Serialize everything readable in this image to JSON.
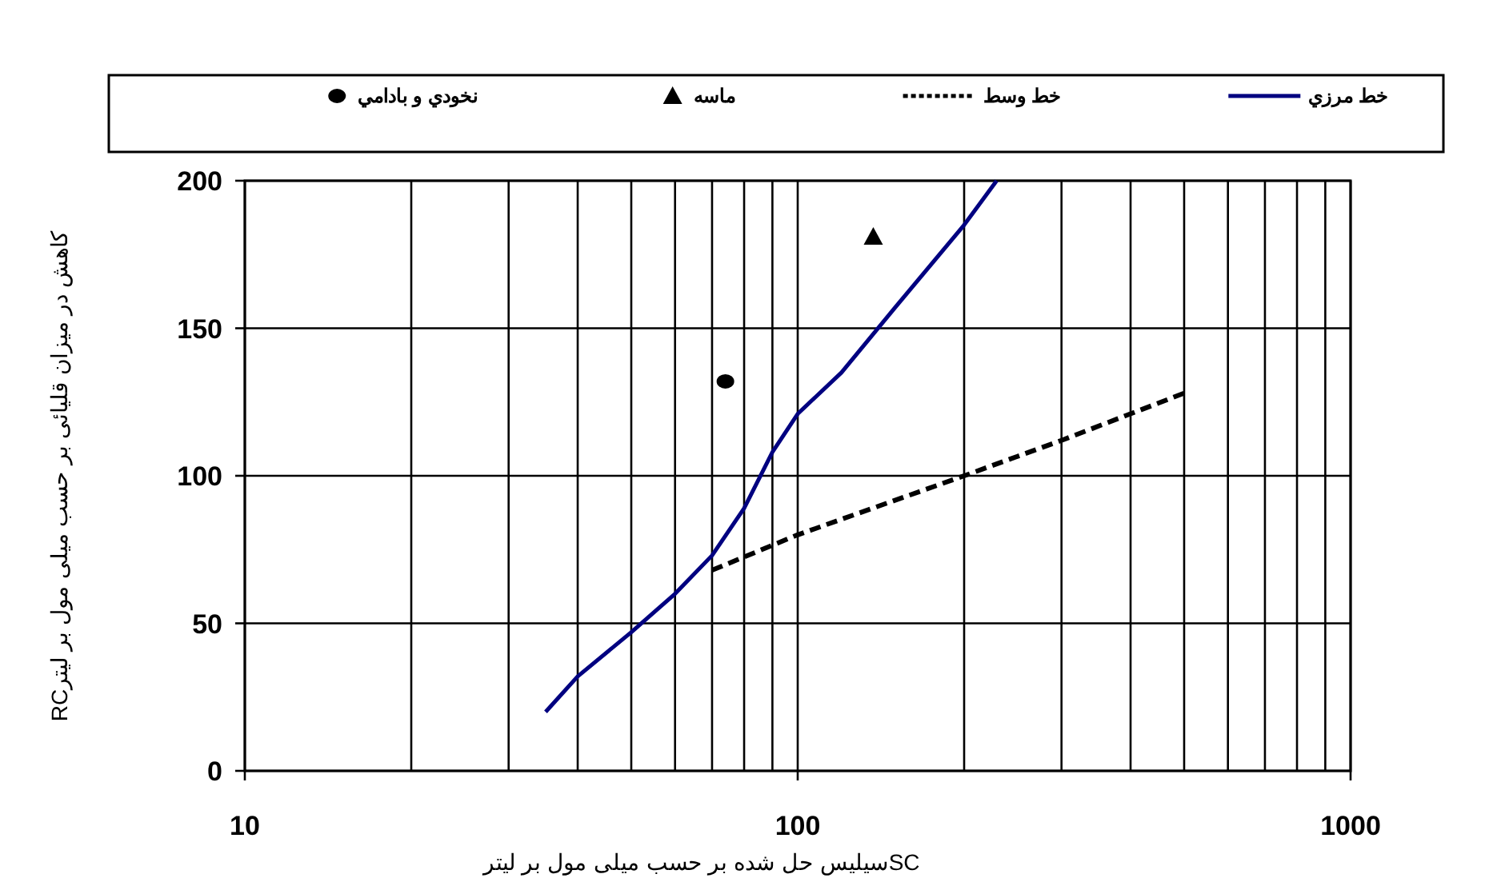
{
  "chart_data": {
    "type": "line",
    "xlabel": "سیلیس حل شده بر حسب میلی مول بر لیترSC",
    "ylabel": "کاهش در میزان قلیائی بر حسب میلی مول بر لیترRC",
    "log": "x",
    "xlim": [
      10,
      1000
    ],
    "ylim": [
      0,
      200
    ],
    "xticks": [
      10,
      {
        "value": 20,
        "label": null
      },
      {
        "value": 30,
        "label": null
      },
      {
        "value": 40,
        "label": null
      },
      {
        "value": 50,
        "label": null
      },
      {
        "value": 60,
        "label": null
      },
      {
        "value": 70,
        "label": null
      },
      {
        "value": 80,
        "label": null
      },
      {
        "value": 90,
        "label": null
      },
      100,
      {
        "value": 200,
        "label": null
      },
      {
        "value": 300,
        "label": null
      },
      {
        "value": 400,
        "label": null
      },
      {
        "value": 500,
        "label": null
      },
      {
        "value": 600,
        "label": null
      },
      {
        "value": 700,
        "label": null
      },
      {
        "value": 800,
        "label": null
      },
      {
        "value": 900,
        "label": null
      },
      1000
    ],
    "yticks": [
      0,
      50,
      100,
      150,
      200
    ],
    "grid": true,
    "legend": "top",
    "series": [
      {
        "name": "خط مرزي",
        "type": "line",
        "color": "#000080",
        "line_style": "solid",
        "marker": "none",
        "x": [
          35,
          40,
          50,
          60,
          70,
          80,
          90,
          100,
          120,
          150,
          200,
          229
        ],
        "values": [
          20,
          32,
          47,
          60,
          73,
          89,
          108,
          121,
          135,
          157,
          185,
          200
        ]
      },
      {
        "name": "خط وسط",
        "type": "line",
        "color": "#000000",
        "line_style": "dashed",
        "marker": "none",
        "x": [
          70,
          100,
          200,
          300,
          500
        ],
        "values": [
          68,
          80,
          100,
          112,
          128
        ]
      },
      {
        "name": "ماسه",
        "type": "scatter",
        "color": "#000000",
        "marker": "triangle",
        "x": [
          137
        ],
        "values": [
          181
        ]
      },
      {
        "name": "نخودي و بادامي",
        "type": "scatter",
        "color": "#000000",
        "marker": "circle",
        "x": [
          74
        ],
        "values": [
          132
        ]
      }
    ]
  }
}
